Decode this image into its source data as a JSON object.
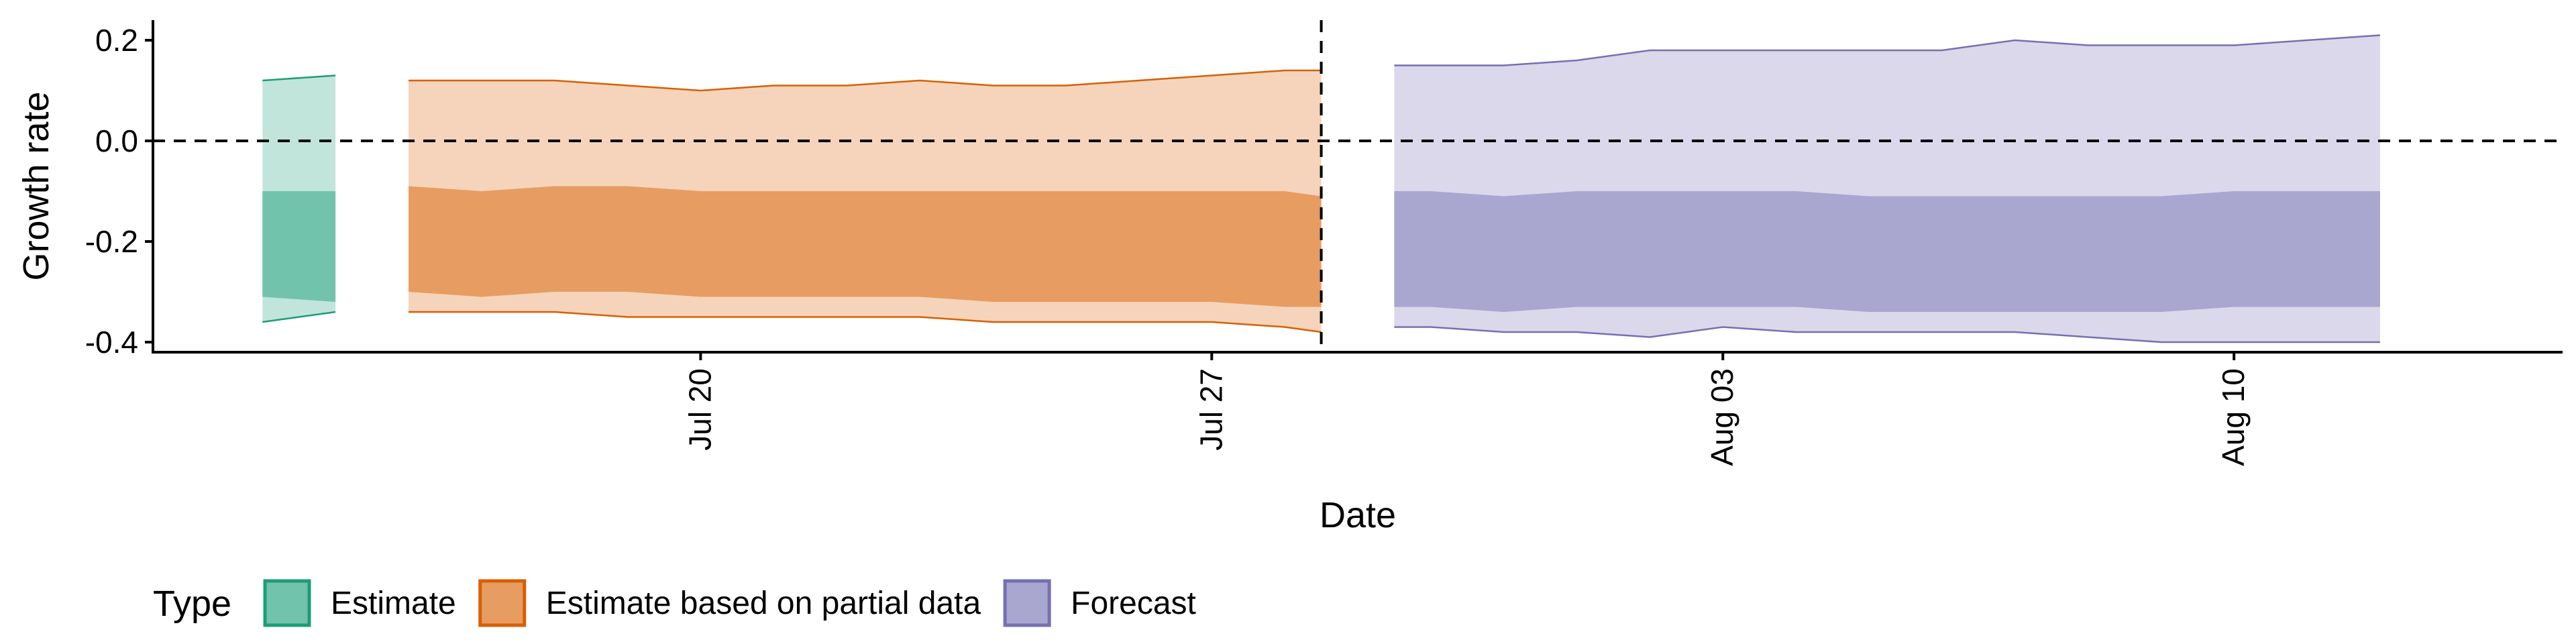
{
  "chart_data": {
    "type": "area",
    "xlabel": "Date",
    "ylabel": "Growth rate",
    "ylim": [
      -0.42,
      0.24
    ],
    "xlim": [
      "2020-07-12T12:00",
      "2020-08-14T12:00"
    ],
    "y_ticks": [
      {
        "value": 0.2,
        "label": "0.2"
      },
      {
        "value": 0.0,
        "label": "0.0"
      },
      {
        "value": -0.2,
        "label": "-0.2"
      },
      {
        "value": -0.4,
        "label": "-0.4"
      }
    ],
    "x_ticks": [
      {
        "date": "2020-07-20",
        "label": "Jul 20"
      },
      {
        "date": "2020-07-27",
        "label": "Jul 27"
      },
      {
        "date": "2020-08-03",
        "label": "Aug 03"
      },
      {
        "date": "2020-08-10",
        "label": "Aug 10"
      }
    ],
    "reference_lines": {
      "hline_y": 0.0,
      "vline_date": "2020-07-28T12:00"
    },
    "legend": {
      "title": "Type",
      "position": "bottom-left"
    },
    "series": [
      {
        "name": "Estimate",
        "color": "#1b9e77",
        "dates": [
          "2020-07-14",
          "2020-07-15"
        ],
        "outer_upper": [
          0.12,
          0.13
        ],
        "inner_upper": [
          -0.1,
          -0.1
        ],
        "inner_lower": [
          -0.31,
          -0.32
        ],
        "outer_lower": [
          -0.36,
          -0.34
        ]
      },
      {
        "name": "Estimate based on partial data",
        "color": "#d95f02",
        "dates": [
          "2020-07-16",
          "2020-07-17",
          "2020-07-18",
          "2020-07-19",
          "2020-07-20",
          "2020-07-21",
          "2020-07-22",
          "2020-07-23",
          "2020-07-24",
          "2020-07-25",
          "2020-07-26",
          "2020-07-27",
          "2020-07-28",
          "2020-07-28T12:00"
        ],
        "outer_upper": [
          0.12,
          0.12,
          0.12,
          0.11,
          0.1,
          0.11,
          0.11,
          0.12,
          0.11,
          0.11,
          0.12,
          0.13,
          0.14,
          0.14
        ],
        "inner_upper": [
          -0.09,
          -0.1,
          -0.09,
          -0.09,
          -0.1,
          -0.1,
          -0.1,
          -0.1,
          -0.1,
          -0.1,
          -0.1,
          -0.1,
          -0.1,
          -0.11
        ],
        "inner_lower": [
          -0.3,
          -0.31,
          -0.3,
          -0.3,
          -0.31,
          -0.31,
          -0.31,
          -0.31,
          -0.32,
          -0.32,
          -0.32,
          -0.32,
          -0.33,
          -0.33
        ],
        "outer_lower": [
          -0.34,
          -0.34,
          -0.34,
          -0.35,
          -0.35,
          -0.35,
          -0.35,
          -0.35,
          -0.36,
          -0.36,
          -0.36,
          -0.36,
          -0.37,
          -0.38
        ]
      },
      {
        "name": "Forecast",
        "color": "#7570b3",
        "dates": [
          "2020-07-29T12:00",
          "2020-07-30",
          "2020-07-31",
          "2020-08-01",
          "2020-08-02",
          "2020-08-03",
          "2020-08-04",
          "2020-08-05",
          "2020-08-06",
          "2020-08-07",
          "2020-08-08",
          "2020-08-09",
          "2020-08-10",
          "2020-08-11",
          "2020-08-12"
        ],
        "outer_upper": [
          0.15,
          0.15,
          0.15,
          0.16,
          0.18,
          0.18,
          0.18,
          0.18,
          0.18,
          0.2,
          0.19,
          0.19,
          0.19,
          0.2,
          0.21
        ],
        "inner_upper": [
          -0.1,
          -0.1,
          -0.11,
          -0.1,
          -0.1,
          -0.1,
          -0.1,
          -0.11,
          -0.11,
          -0.11,
          -0.11,
          -0.11,
          -0.1,
          -0.1,
          -0.1
        ],
        "inner_lower": [
          -0.33,
          -0.33,
          -0.34,
          -0.33,
          -0.33,
          -0.33,
          -0.33,
          -0.34,
          -0.34,
          -0.34,
          -0.34,
          -0.34,
          -0.33,
          -0.33,
          -0.33
        ],
        "outer_lower": [
          -0.37,
          -0.37,
          -0.38,
          -0.38,
          -0.39,
          -0.37,
          -0.38,
          -0.38,
          -0.38,
          -0.38,
          -0.39,
          -0.4,
          -0.4,
          -0.4,
          -0.4
        ]
      }
    ]
  }
}
